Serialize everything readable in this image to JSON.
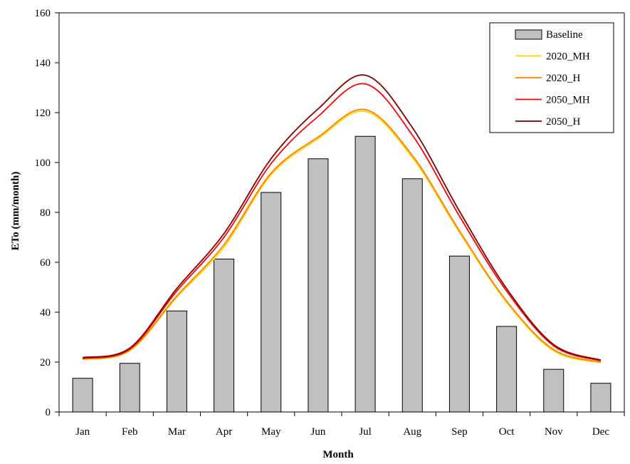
{
  "chart_data": {
    "type": "bar",
    "xlabel": "Month",
    "ylabel": "ETo (mm/month)",
    "ylim": [
      0,
      160
    ],
    "yticks": [
      0,
      20,
      40,
      60,
      80,
      100,
      120,
      140,
      160
    ],
    "categories": [
      "Jan",
      "Feb",
      "Mar",
      "Apr",
      "May",
      "Jun",
      "Jul",
      "Aug",
      "Sep",
      "Oct",
      "Nov",
      "Dec"
    ],
    "grid": false,
    "legend_position": "top-right",
    "series": [
      {
        "name": "Baseline",
        "kind": "bar",
        "color": "#c0c0c0",
        "values": [
          13.5,
          19.5,
          40.5,
          61.3,
          88,
          101.5,
          110.5,
          93.5,
          62.5,
          34.3,
          17.1,
          11.5
        ]
      },
      {
        "name": "2020_MH",
        "kind": "line",
        "color": "#ffd700",
        "values": [
          21.0,
          24.5,
          46.0,
          66.0,
          95.0,
          109.5,
          120.5,
          102.0,
          72.0,
          44.0,
          24.5,
          19.8
        ]
      },
      {
        "name": "2020_H",
        "kind": "line",
        "color": "#ff8000",
        "values": [
          21.2,
          24.8,
          46.5,
          67.0,
          95.7,
          110.2,
          121.2,
          102.8,
          72.6,
          44.5,
          25.0,
          20.0
        ]
      },
      {
        "name": "2050_MH",
        "kind": "line",
        "color": "#ff0000",
        "values": [
          21.5,
          25.2,
          48.5,
          70.0,
          99.5,
          118.5,
          131.5,
          111.0,
          78.5,
          48.5,
          26.5,
          20.5
        ]
      },
      {
        "name": "2050_H",
        "kind": "line",
        "color": "#800000",
        "values": [
          21.8,
          25.6,
          49.5,
          71.5,
          101.5,
          121.5,
          135.0,
          114.0,
          80.5,
          49.5,
          27.0,
          20.8
        ]
      }
    ]
  }
}
